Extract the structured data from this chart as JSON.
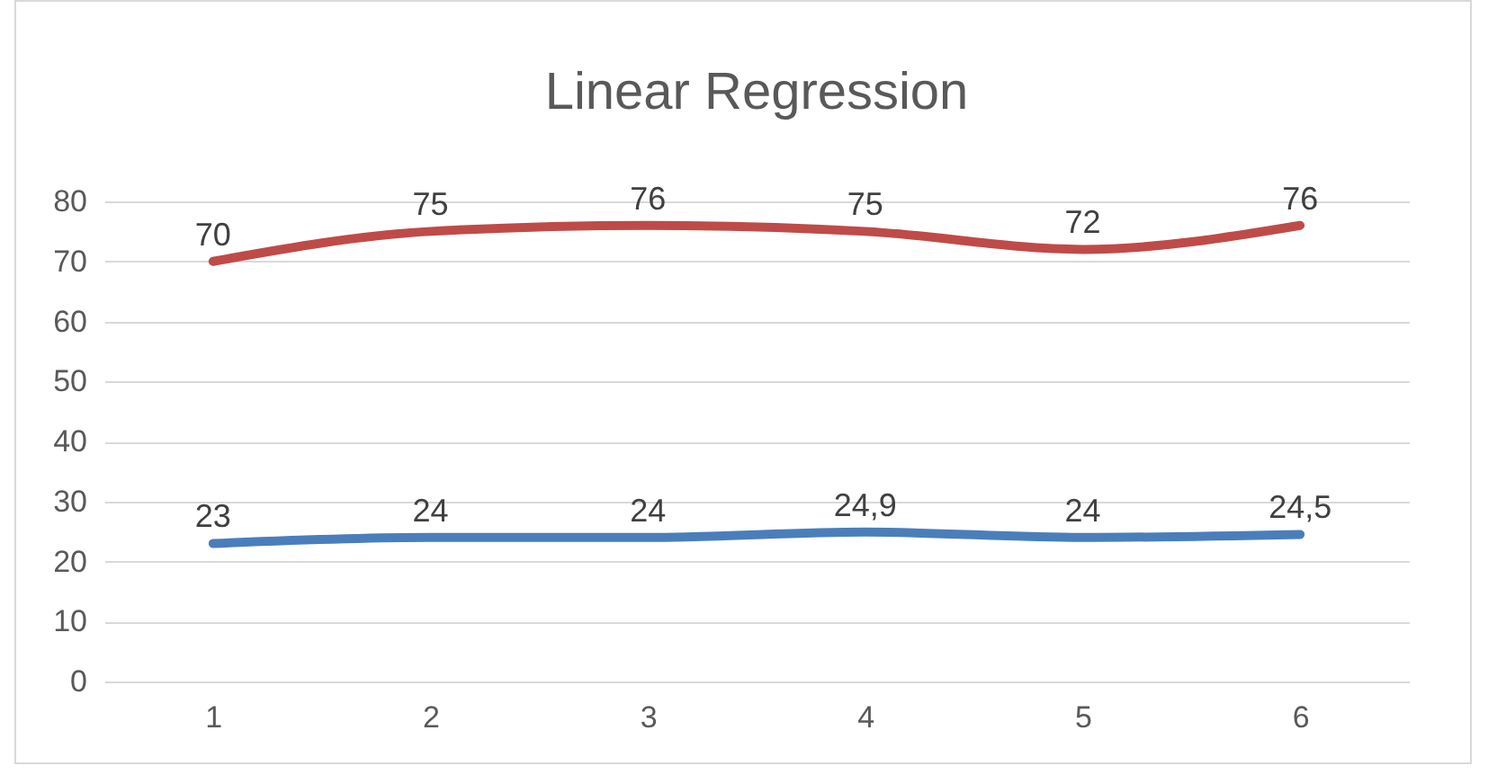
{
  "chart_data": {
    "type": "line",
    "title": "Linear Regression",
    "categories": [
      "1",
      "2",
      "3",
      "4",
      "5",
      "6"
    ],
    "series": [
      {
        "color": "#be4b48",
        "values": [
          70,
          75,
          76,
          75,
          72,
          76
        ],
        "value_labels": [
          "70",
          "75",
          "76",
          "75",
          "72",
          "76"
        ]
      },
      {
        "color": "#4a7ebb",
        "values": [
          23,
          24,
          24,
          24.9,
          24,
          24.5
        ],
        "value_labels": [
          "23",
          "24",
          "24",
          "24,9",
          "24",
          "24,5"
        ]
      }
    ],
    "ylim": [
      0,
      80
    ],
    "yticks": [
      0,
      10,
      20,
      30,
      40,
      50,
      60,
      70,
      80
    ],
    "grid": "y",
    "legend": false,
    "line_style": "solid",
    "marker": "none"
  }
}
